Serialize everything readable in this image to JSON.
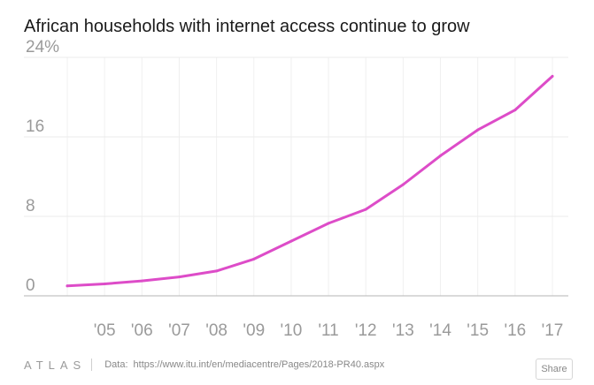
{
  "chart_data": {
    "type": "line",
    "title": "African households with internet access continue to grow",
    "xlabel": "",
    "ylabel": "",
    "x": [
      2004,
      2005,
      2006,
      2007,
      2008,
      2009,
      2010,
      2011,
      2012,
      2013,
      2014,
      2015,
      2016,
      2017
    ],
    "series": [
      {
        "values": [
          1.0,
          1.2,
          1.5,
          1.9,
          2.5,
          3.7,
          5.5,
          7.3,
          8.7,
          11.2,
          14.1,
          16.7,
          18.7,
          22.1
        ]
      }
    ],
    "ylim": [
      0,
      24
    ],
    "yticks": [
      0,
      8,
      16,
      24
    ],
    "ytick_labels": [
      "0",
      "8",
      "16",
      "24%"
    ],
    "xtick_labels": [
      "'05",
      "'06",
      "'07",
      "'08",
      "'09",
      "'10",
      "'11",
      "'12",
      "'13",
      "'14",
      "'15",
      "'16",
      "'17"
    ],
    "grid": true,
    "line_color": "#dd4cc8"
  },
  "footer": {
    "brand": "ATLAS",
    "data_label": "Data:",
    "source": "https://www.itu.int/en/mediacentre/Pages/2018-PR40.aspx",
    "share_label": "Share"
  }
}
